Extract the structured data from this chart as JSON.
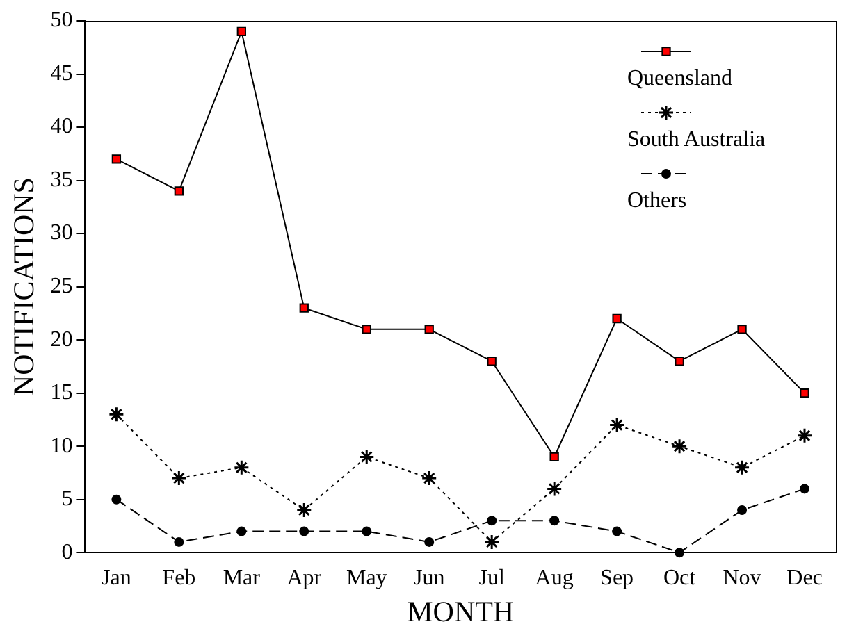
{
  "chart_data": {
    "type": "line",
    "xlabel": "MONTH",
    "ylabel": "NOTIFICATIONS",
    "categories": [
      "Jan",
      "Feb",
      "Mar",
      "Apr",
      "May",
      "Jun",
      "Jul",
      "Aug",
      "Sep",
      "Oct",
      "Nov",
      "Dec"
    ],
    "series": [
      {
        "name": "Queensland",
        "color": "#ff0000",
        "marker": "square",
        "line_style": "solid",
        "values": [
          37,
          34,
          49,
          23,
          21,
          21,
          18,
          9,
          22,
          18,
          21,
          15
        ]
      },
      {
        "name": "South Australia",
        "color": "#000000",
        "marker": "star",
        "line_style": "dotted",
        "values": [
          13,
          7,
          8,
          4,
          9,
          7,
          1,
          6,
          12,
          10,
          8,
          11
        ]
      },
      {
        "name": "Others",
        "color": "#000000",
        "marker": "circle",
        "line_style": "dashed",
        "values": [
          5,
          1,
          2,
          2,
          2,
          1,
          3,
          3,
          2,
          0,
          4,
          6
        ]
      }
    ],
    "ylim": [
      0,
      50
    ],
    "yticks": [
      0,
      5,
      10,
      15,
      20,
      25,
      30,
      35,
      40,
      45,
      50
    ],
    "grid": false,
    "legend": "top right"
  }
}
